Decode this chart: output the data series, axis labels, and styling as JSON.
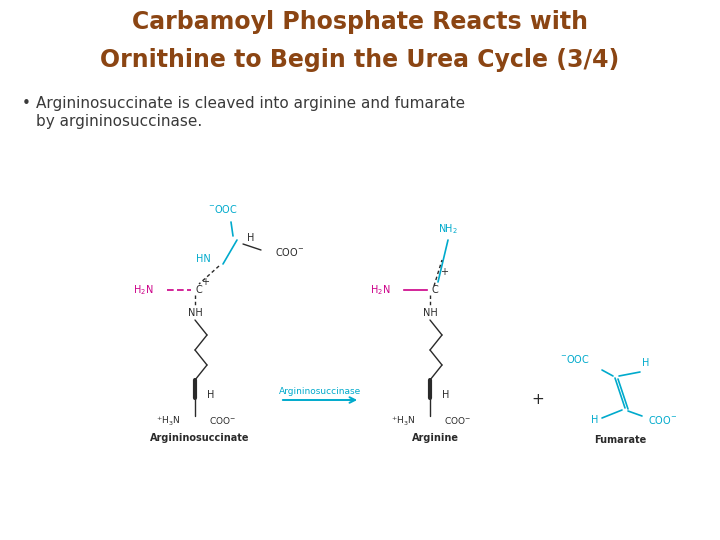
{
  "title_line1": "Carbamoyl Phosphate Reacts with",
  "title_line2": "Ornithine to Begin the Urea Cycle (3/4)",
  "title_color": "#8B4513",
  "title_fontsize": 17,
  "bullet_text_line1": "Argininosuccinate is cleaved into arginine and fumarate",
  "bullet_text_line2": "by argininosuccinase.",
  "bullet_color": "#3A3A3A",
  "bullet_fontsize": 11,
  "background_color": "#FFFFFF",
  "cyan": "#00AACC",
  "magenta": "#CC0088",
  "dark": "#2A2A2A",
  "arrow_color": "#00AACC"
}
